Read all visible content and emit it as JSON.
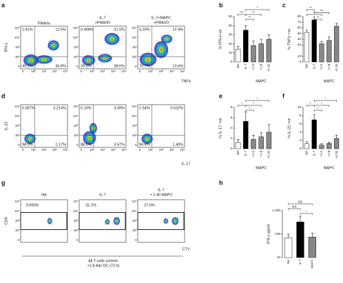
{
  "flow_panels": [
    {
      "letter": "a",
      "y_label": "IFN-γ",
      "x_label": "TNFα",
      "y_ticks": [
        "10⁵",
        "10⁴",
        "10³",
        "10²",
        "0"
      ],
      "x_ticks": [
        "0",
        "10²",
        "10³",
        "10⁴",
        "10⁵"
      ],
      "plots": [
        {
          "title": [
            "PMA/Io"
          ],
          "quadrants": [
            "1.61%",
            "12.5%",
            "49.1%",
            "36.8%"
          ]
        },
        {
          "title": [
            "IL-7",
            ">PMA/IO"
          ],
          "quadrants": [
            "0.998%",
            "31.5%",
            "29.0%",
            "38.6%"
          ]
        },
        {
          "title": [
            "IL-7+MAPC",
            ">PMA/IO"
          ],
          "quadrants": [
            "3.20%",
            "12.4%",
            "70.7%",
            "13.6%"
          ]
        }
      ]
    },
    {
      "letter": "d",
      "y_label": "IL-22",
      "x_label": "IL-17",
      "y_ticks": [
        "10⁵",
        "10⁴",
        "10³",
        "10²",
        "0"
      ],
      "x_ticks": [
        "0",
        "10²",
        "10³",
        "10⁴",
        "10⁵"
      ],
      "plots": [
        {
          "quadrants": [
            "0.587%",
            "0.214%",
            "98.0%",
            "1.17%"
          ]
        },
        {
          "quadrants": [
            "5.19%",
            "3.09%",
            "88.0%",
            "3.67%"
          ]
        },
        {
          "quadrants": [
            "1.54%",
            "0.632%",
            "96.4%",
            "1.40%"
          ]
        }
      ]
    },
    {
      "letter": "g",
      "y_label": "CD4",
      "x_label": "CTV",
      "y_ticks": [
        "10⁵",
        "10⁴",
        "10³",
        "10²",
        "0"
      ],
      "plots": [
        {
          "title": [
            "NA"
          ],
          "gate": "0.650%"
        },
        {
          "title": [
            "IL-7"
          ],
          "gate": "31.1%"
        },
        {
          "title": [
            "IL-7",
            "+ 1:40 MAPC"
          ],
          "gate": "27.6%"
        }
      ],
      "caption": [
        "All T-cells sorted>",
        "+1:8 Allo DC (72 h)"
      ]
    }
  ],
  "chart_data": [
    {
      "type": "bar",
      "letter": "b",
      "y_label": "% IFN-γ+ve",
      "categories": [
        "NA",
        "IL-7",
        "+1:2",
        "+1:8",
        "+1:32"
      ],
      "group_label": "MAPC",
      "values": [
        14,
        35,
        18,
        20,
        25
      ],
      "errors": [
        3,
        5,
        5,
        5,
        5
      ],
      "colors": [
        "#ffffff",
        "#000000",
        "#9a9a9a",
        "#9a9a9a",
        "#9a9a9a"
      ],
      "hatch": [
        false,
        false,
        true,
        true,
        true
      ],
      "ylim": [
        0,
        50
      ],
      "yticks": [
        0,
        10,
        20,
        30,
        40,
        50
      ],
      "annotations": [
        "***",
        "**",
        "*",
        "**"
      ]
    },
    {
      "type": "bar",
      "letter": "c",
      "y_label": "% TNFα +ve",
      "categories": [
        "NA",
        "IL-7",
        "+1:2",
        "+1:8",
        "+1:32"
      ],
      "group_label": "MAPC",
      "values": [
        52,
        74,
        32,
        38,
        63
      ],
      "errors": [
        4,
        5,
        4,
        6,
        5
      ],
      "colors": [
        "#ffffff",
        "#000000",
        "#9a9a9a",
        "#9a9a9a",
        "#9a9a9a"
      ],
      "hatch": [
        false,
        false,
        true,
        true,
        true
      ],
      "ylim": [
        0,
        80
      ],
      "yticks": [
        0,
        10,
        30,
        40,
        50,
        60,
        70,
        80
      ],
      "annotations": [
        "**",
        "*",
        "***",
        "**"
      ]
    },
    {
      "type": "bar",
      "letter": "e",
      "y_label": "% IL-17 +ve",
      "categories": [
        "NA",
        "IL-7",
        "+1:2",
        "+1:8",
        "+1:32"
      ],
      "group_label": "MAPC",
      "values": [
        1.2,
        5.3,
        1.8,
        2.3,
        3.2
      ],
      "errors": [
        0.6,
        1.8,
        0.8,
        0.8,
        1.5
      ],
      "colors": [
        "#ffffff",
        "#000000",
        "#9a9a9a",
        "#9a9a9a",
        "#9a9a9a"
      ],
      "hatch": [
        false,
        false,
        true,
        true,
        true
      ],
      "ylim": [
        0,
        8
      ],
      "yticks": [
        0,
        2,
        4,
        6,
        8
      ],
      "annotations": [
        "*",
        "*",
        "*",
        "*"
      ]
    },
    {
      "type": "bar",
      "letter": "f",
      "y_label": "% IL-22 +ve",
      "categories": [
        "NA",
        "IL-7",
        "+1:2",
        "+1:8",
        "+1:32"
      ],
      "group_label": "MAPC",
      "values": [
        1.2,
        7.0,
        0.9,
        1.3,
        2.5
      ],
      "errors": [
        0.5,
        1.2,
        0.3,
        0.3,
        0.8
      ],
      "colors": [
        "#ffffff",
        "#000000",
        "#9a9a9a",
        "#9a9a9a",
        "#9a9a9a"
      ],
      "hatch": [
        false,
        false,
        true,
        true,
        true
      ],
      "ylim": [
        0,
        10
      ],
      "yticks": [
        0,
        2,
        4,
        6,
        8,
        10
      ],
      "annotations": [
        "*",
        "*",
        "*",
        "*"
      ]
    },
    {
      "type": "bar",
      "letter": "h",
      "y_label": "IFN-γ pg/ml",
      "categories": [
        "NA",
        "IL-7",
        "MAPC"
      ],
      "values": [
        70,
        330,
        75
      ],
      "errors": [
        30,
        250,
        35
      ],
      "colors": [
        "#ffffff",
        "#000000",
        "#9a9a9a"
      ],
      "hatch": [
        false,
        false,
        true
      ],
      "log_scale": true,
      "ylim": [
        10,
        1000
      ],
      "yticks": [
        10,
        100,
        {
          "value": 1000,
          "label": "1,000"
        }
      ],
      "annotations": [
        "NS",
        "NS",
        "*"
      ]
    }
  ]
}
